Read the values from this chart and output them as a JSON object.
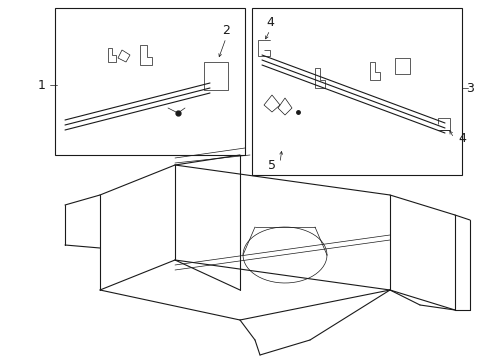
{
  "bg_color": "#ffffff",
  "line_color": "#1a1a1a",
  "lw": 0.8,
  "tlw": 0.5,
  "figsize": [
    4.89,
    3.6
  ],
  "dpi": 100
}
